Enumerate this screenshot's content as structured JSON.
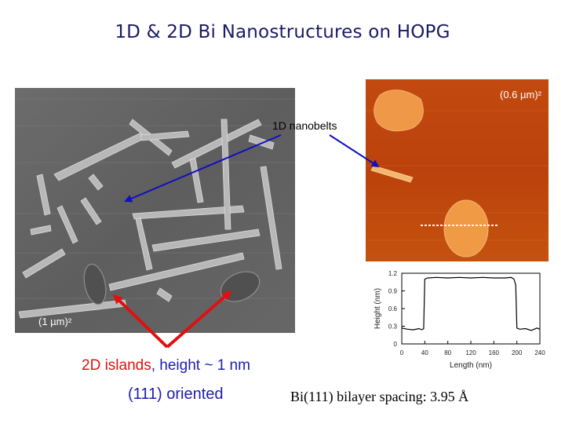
{
  "slide": {
    "title": "1D & 2D Bi Nanostructures on HOPG"
  },
  "sem_panel": {
    "scale_label": "(1 µm)²"
  },
  "afm_panel": {
    "scale_label": "(0.6 µm)²"
  },
  "labels": {
    "nanobelts": "1D nanobelts",
    "islands_prefix": "2D islands",
    "islands_suffix": ", height ~ 1 nm",
    "oriented": "(111) oriented",
    "bilayer": "Bi(111) bilayer spacing: 3.95 Å"
  },
  "colors": {
    "title": "#1a1a66",
    "blue_arrow": "#1010c0",
    "red_arrow": "#e01010"
  },
  "chart_data": {
    "type": "line",
    "xlabel": "Length (nm)",
    "ylabel": "Height (nm)",
    "xlim": [
      0,
      240
    ],
    "ylim": [
      0,
      1.2
    ],
    "x_ticks": [
      "0",
      "40",
      "80",
      "120",
      "160",
      "200",
      "240"
    ],
    "y_ticks": [
      "0",
      "0.3",
      "0.6",
      "0.9",
      "1.2"
    ],
    "series": [
      {
        "x": [
          0,
          10,
          20,
          30,
          35,
          38,
          40,
          45,
          60,
          80,
          100,
          120,
          140,
          160,
          180,
          190,
          195,
          198,
          200,
          205,
          215,
          225,
          235,
          240
        ],
        "values": [
          0.27,
          0.25,
          0.24,
          0.26,
          0.24,
          0.26,
          1.1,
          1.12,
          1.13,
          1.12,
          1.13,
          1.12,
          1.13,
          1.12,
          1.12,
          1.13,
          1.1,
          1.0,
          0.27,
          0.25,
          0.26,
          0.23,
          0.27,
          0.25
        ]
      }
    ]
  }
}
